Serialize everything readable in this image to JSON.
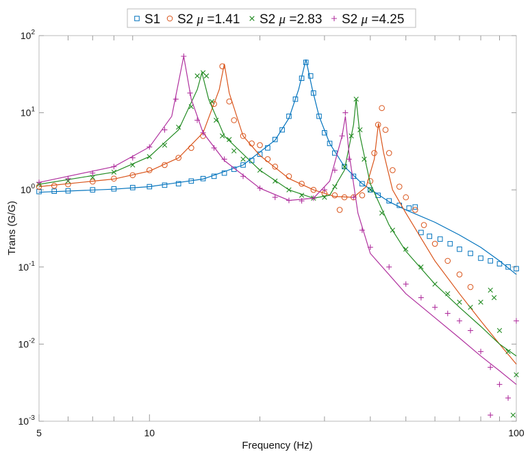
{
  "chart_data": {
    "type": "line",
    "xlabel": "Frequency (Hz)",
    "ylabel": "Trans (G/G)",
    "xscale": "log",
    "yscale": "log",
    "xlim": [
      5,
      100
    ],
    "ylim": [
      0.001,
      100
    ],
    "xticks": [
      {
        "v": 5,
        "label": "5"
      },
      {
        "v": 10,
        "label": "10"
      },
      {
        "v": 100,
        "label": "100"
      }
    ],
    "yticks": [
      {
        "v": 0.001,
        "base": "10",
        "exp": "-3"
      },
      {
        "v": 0.01,
        "base": "10",
        "exp": "-2"
      },
      {
        "v": 0.1,
        "base": "10",
        "exp": "-1"
      },
      {
        "v": 1,
        "base": "10",
        "exp": "0"
      },
      {
        "v": 10,
        "base": "10",
        "exp": "1"
      },
      {
        "v": 100,
        "base": "10",
        "exp": "2"
      }
    ],
    "grid": false,
    "legend_placement": "top-center-outside",
    "series": [
      {
        "name": "S1",
        "legend_prefix": "S1",
        "legend_mu": "",
        "legend_value": "",
        "color": "#0072BD",
        "marker": "square",
        "measured": [
          [
            5,
            0.95
          ],
          [
            5.5,
            0.96
          ],
          [
            6,
            0.97
          ],
          [
            7,
            1.0
          ],
          [
            8,
            1.03
          ],
          [
            9,
            1.07
          ],
          [
            10,
            1.1
          ],
          [
            11,
            1.15
          ],
          [
            12,
            1.2
          ],
          [
            13,
            1.3
          ],
          [
            14,
            1.4
          ],
          [
            15,
            1.5
          ],
          [
            16,
            1.65
          ],
          [
            17,
            1.85
          ],
          [
            18,
            2.1
          ],
          [
            19,
            2.4
          ],
          [
            20,
            2.9
          ],
          [
            21,
            3.5
          ],
          [
            22,
            4.5
          ],
          [
            23,
            6
          ],
          [
            24,
            9
          ],
          [
            25,
            15
          ],
          [
            26,
            28
          ],
          [
            26.7,
            45
          ],
          [
            27.5,
            30
          ],
          [
            28,
            18
          ],
          [
            29,
            9
          ],
          [
            30,
            5.5
          ],
          [
            31,
            4
          ],
          [
            32,
            3
          ],
          [
            34,
            2
          ],
          [
            36,
            1.5
          ],
          [
            38,
            1.2
          ],
          [
            40,
            1.0
          ],
          [
            42,
            0.85
          ],
          [
            45,
            0.72
          ],
          [
            48,
            0.63
          ],
          [
            51,
            0.58
          ],
          [
            53,
            0.6
          ],
          [
            55,
            0.28
          ],
          [
            58,
            0.25
          ],
          [
            62,
            0.23
          ],
          [
            66,
            0.2
          ],
          [
            70,
            0.17
          ],
          [
            75,
            0.15
          ],
          [
            80,
            0.13
          ],
          [
            85,
            0.12
          ],
          [
            90,
            0.11
          ],
          [
            95,
            0.1
          ],
          [
            100,
            0.095
          ]
        ],
        "fit": [
          [
            5,
            0.93
          ],
          [
            8,
            1.02
          ],
          [
            10,
            1.1
          ],
          [
            14,
            1.38
          ],
          [
            18,
            2.1
          ],
          [
            22,
            4.4
          ],
          [
            24,
            8.5
          ],
          [
            25.5,
            20
          ],
          [
            26.7,
            49
          ],
          [
            27.8,
            20
          ],
          [
            29,
            9
          ],
          [
            31,
            4
          ],
          [
            34,
            2
          ],
          [
            38,
            1.2
          ],
          [
            45,
            0.7
          ],
          [
            50,
            0.55
          ],
          [
            60,
            0.38
          ],
          [
            70,
            0.26
          ],
          [
            80,
            0.18
          ],
          [
            90,
            0.12
          ],
          [
            100,
            0.08
          ]
        ]
      },
      {
        "name": "S2 μ =1.41",
        "legend_prefix": "S2 ",
        "legend_mu": "μ",
        "legend_value": " =1.41",
        "color": "#D95319",
        "marker": "circle",
        "measured": [
          [
            5,
            1.1
          ],
          [
            5.5,
            1.13
          ],
          [
            6,
            1.18
          ],
          [
            7,
            1.28
          ],
          [
            8,
            1.4
          ],
          [
            9,
            1.55
          ],
          [
            10,
            1.8
          ],
          [
            11,
            2.1
          ],
          [
            12,
            2.6
          ],
          [
            13,
            3.5
          ],
          [
            14,
            5
          ],
          [
            15,
            13
          ],
          [
            15.8,
            40
          ],
          [
            16.5,
            14
          ],
          [
            17,
            8
          ],
          [
            18,
            5
          ],
          [
            19,
            4
          ],
          [
            20,
            3.8
          ],
          [
            21,
            2.5
          ],
          [
            22,
            2.0
          ],
          [
            24,
            1.5
          ],
          [
            26,
            1.2
          ],
          [
            28,
            1.0
          ],
          [
            30,
            0.9
          ],
          [
            32,
            0.85
          ],
          [
            33,
            0.55
          ],
          [
            34,
            0.8
          ],
          [
            36,
            0.8
          ],
          [
            38,
            0.85
          ],
          [
            40,
            1.3
          ],
          [
            41,
            3
          ],
          [
            42,
            7
          ],
          [
            43,
            11.5
          ],
          [
            44,
            6
          ],
          [
            45,
            3
          ],
          [
            46,
            1.8
          ],
          [
            48,
            1.1
          ],
          [
            50,
            0.8
          ],
          [
            53,
            0.55
          ],
          [
            56,
            0.35
          ],
          [
            60,
            0.2
          ],
          [
            65,
            0.12
          ],
          [
            70,
            0.08
          ],
          [
            75,
            0.055
          ]
        ],
        "fit": [
          [
            5,
            1.1
          ],
          [
            8,
            1.38
          ],
          [
            10,
            1.75
          ],
          [
            12,
            2.6
          ],
          [
            14,
            5.5
          ],
          [
            15.5,
            20
          ],
          [
            16,
            43
          ],
          [
            16.5,
            18
          ],
          [
            18,
            5
          ],
          [
            20,
            2.8
          ],
          [
            24,
            1.4
          ],
          [
            28,
            1.0
          ],
          [
            32,
            0.82
          ],
          [
            36,
            0.8
          ],
          [
            39,
            1.1
          ],
          [
            41,
            2.5
          ],
          [
            42.1,
            7.3
          ],
          [
            43.5,
            3
          ],
          [
            46,
            1.0
          ],
          [
            50,
            0.5
          ],
          [
            60,
            0.12
          ],
          [
            70,
            0.045
          ],
          [
            80,
            0.02
          ],
          [
            90,
            0.01
          ],
          [
            100,
            0.0055
          ]
        ]
      },
      {
        "name": "S2 μ =2.83",
        "legend_prefix": "S2 ",
        "legend_mu": "μ",
        "legend_value": " =2.83",
        "color": "#228B22",
        "marker": "x",
        "measured": [
          [
            5,
            1.18
          ],
          [
            6,
            1.3
          ],
          [
            7,
            1.45
          ],
          [
            8,
            1.7
          ],
          [
            9,
            2.1
          ],
          [
            10,
            2.7
          ],
          [
            11,
            3.8
          ],
          [
            12,
            6.5
          ],
          [
            13,
            12
          ],
          [
            13.5,
            30
          ],
          [
            14,
            33
          ],
          [
            14.3,
            30
          ],
          [
            14.8,
            14
          ],
          [
            15.2,
            8
          ],
          [
            15.8,
            5
          ],
          [
            16.5,
            4.5
          ],
          [
            17,
            3.2
          ],
          [
            18,
            2.5
          ],
          [
            20,
            1.8
          ],
          [
            22,
            1.3
          ],
          [
            24,
            1.0
          ],
          [
            26,
            0.85
          ],
          [
            28,
            0.78
          ],
          [
            30,
            0.8
          ],
          [
            32,
            1.1
          ],
          [
            34,
            2.0
          ],
          [
            35.5,
            5
          ],
          [
            36.6,
            15
          ],
          [
            37.5,
            6
          ],
          [
            38.5,
            2.5
          ],
          [
            40,
            1.0
          ],
          [
            43,
            0.5
          ],
          [
            46,
            0.3
          ],
          [
            50,
            0.17
          ],
          [
            55,
            0.1
          ],
          [
            60,
            0.06
          ],
          [
            65,
            0.045
          ],
          [
            70,
            0.035
          ],
          [
            75,
            0.03
          ],
          [
            80,
            0.035
          ],
          [
            85,
            0.05
          ],
          [
            87,
            0.04
          ],
          [
            90,
            0.015
          ],
          [
            95,
            0.008
          ],
          [
            100,
            0.004
          ],
          [
            98,
            0.0012
          ]
        ],
        "fit": [
          [
            5,
            1.18
          ],
          [
            8,
            1.7
          ],
          [
            10,
            2.7
          ],
          [
            12,
            6
          ],
          [
            13.5,
            20
          ],
          [
            13.9,
            33
          ],
          [
            14.5,
            15
          ],
          [
            16,
            5
          ],
          [
            20,
            1.8
          ],
          [
            24,
            1.0
          ],
          [
            28,
            0.78
          ],
          [
            31,
            0.85
          ],
          [
            34,
            1.8
          ],
          [
            36,
            7
          ],
          [
            36.6,
            15
          ],
          [
            37.5,
            5
          ],
          [
            40,
            1.2
          ],
          [
            45,
            0.35
          ],
          [
            50,
            0.16
          ],
          [
            60,
            0.06
          ],
          [
            70,
            0.03
          ],
          [
            80,
            0.017
          ],
          [
            90,
            0.01
          ],
          [
            100,
            0.007
          ]
        ]
      },
      {
        "name": "S2 μ =4.25",
        "legend_prefix": "S2 ",
        "legend_mu": "μ",
        "legend_value": " =4.25",
        "color": "#B0309E",
        "marker": "plus",
        "measured": [
          [
            5,
            1.25
          ],
          [
            6,
            1.4
          ],
          [
            7,
            1.65
          ],
          [
            8,
            2.0
          ],
          [
            9,
            2.6
          ],
          [
            10,
            3.6
          ],
          [
            11,
            6
          ],
          [
            11.8,
            15
          ],
          [
            12.4,
            54
          ],
          [
            12.9,
            18
          ],
          [
            13.5,
            8
          ],
          [
            14,
            5.5
          ],
          [
            15,
            3.5
          ],
          [
            16,
            2.5
          ],
          [
            18,
            1.5
          ],
          [
            20,
            1.05
          ],
          [
            22,
            0.8
          ],
          [
            24,
            0.73
          ],
          [
            26,
            0.72
          ],
          [
            28,
            0.78
          ],
          [
            30,
            1.0
          ],
          [
            32,
            1.8
          ],
          [
            33.5,
            5
          ],
          [
            34.2,
            10
          ],
          [
            35,
            2.5
          ],
          [
            36,
            0.8
          ],
          [
            38,
            0.3
          ],
          [
            40,
            0.18
          ],
          [
            45,
            0.1
          ],
          [
            50,
            0.06
          ],
          [
            55,
            0.04
          ],
          [
            60,
            0.03
          ],
          [
            65,
            0.025
          ],
          [
            70,
            0.02
          ],
          [
            75,
            0.015
          ],
          [
            80,
            0.008
          ],
          [
            85,
            0.005
          ],
          [
            90,
            0.003
          ],
          [
            95,
            0.002
          ],
          [
            100,
            0.02
          ],
          [
            85,
            0.0012
          ]
        ],
        "fit": [
          [
            5,
            1.25
          ],
          [
            8,
            2.0
          ],
          [
            10,
            3.6
          ],
          [
            11.5,
            9
          ],
          [
            12.4,
            54
          ],
          [
            13,
            15
          ],
          [
            14,
            5.5
          ],
          [
            16,
            2.4
          ],
          [
            20,
            1.05
          ],
          [
            24,
            0.73
          ],
          [
            28,
            0.78
          ],
          [
            31,
            1.3
          ],
          [
            33.5,
            5
          ],
          [
            34.2,
            9
          ],
          [
            35,
            3
          ],
          [
            37,
            0.5
          ],
          [
            40,
            0.15
          ],
          [
            50,
            0.045
          ],
          [
            60,
            0.022
          ],
          [
            70,
            0.012
          ],
          [
            80,
            0.007
          ],
          [
            90,
            0.0045
          ],
          [
            100,
            0.003
          ]
        ]
      }
    ]
  }
}
